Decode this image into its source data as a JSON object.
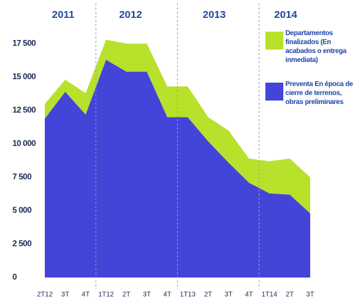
{
  "chart_data": {
    "type": "stacked-area",
    "categories": [
      "2T12",
      "3T",
      "4T",
      "1T12",
      "2T",
      "3T",
      "4T",
      "1T13",
      "2T",
      "3T",
      "4T",
      "1T14",
      "2T",
      "3T"
    ],
    "year_labels": [
      "2011",
      "2012",
      "2013",
      "2014"
    ],
    "series": [
      {
        "name": "Preventa En época de cierre de terrenos, obras preliminares",
        "color": "#4444d8",
        "values": [
          11900,
          13900,
          12200,
          16300,
          15400,
          15400,
          12000,
          12000,
          10200,
          8600,
          7100,
          6300,
          6200,
          4800
        ]
      },
      {
        "name": "Departamentos finalizados (En acabados o entrega inmediata)",
        "color": "#b8e12c",
        "values": [
          1100,
          900,
          1600,
          1500,
          2100,
          2100,
          2300,
          2300,
          1800,
          2400,
          1800,
          2400,
          2700,
          2700
        ]
      }
    ],
    "ylim": [
      0,
      18500
    ],
    "yticks": [
      0,
      {
        "value": 2500,
        "label": "2 500"
      },
      {
        "value": 5000,
        "label": "5 000"
      },
      {
        "value": 7500,
        "label": "7 500"
      },
      {
        "value": 10000,
        "label": "10 000"
      },
      {
        "value": 12500,
        "label": "12 500"
      },
      {
        "value": 15000,
        "label": "15 000"
      },
      {
        "value": 17500,
        "label": "17 500"
      }
    ]
  }
}
